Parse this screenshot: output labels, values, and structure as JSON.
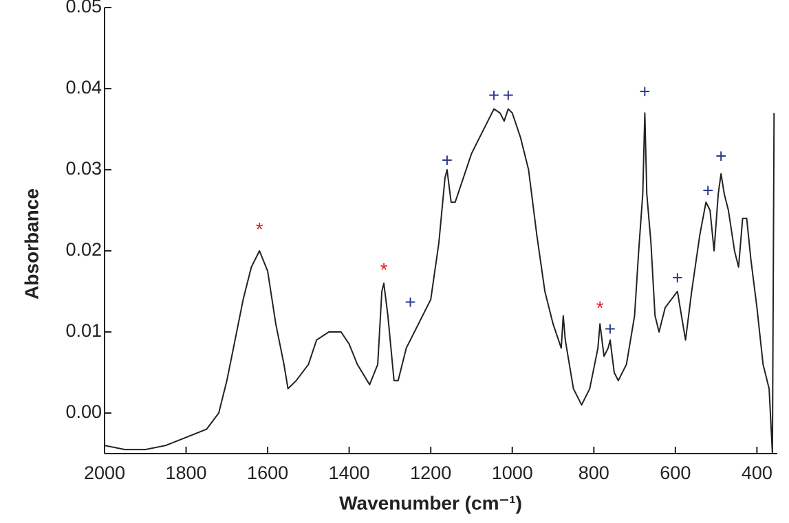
{
  "chart_data": {
    "type": "line",
    "x_label": "Wavenumber (cm⁻¹)",
    "y_label": "Absorbance",
    "xlim": [
      2000,
      350
    ],
    "ylim": [
      -0.005,
      0.05
    ],
    "xticks": [
      2000,
      1800,
      1600,
      1400,
      1200,
      1000,
      800,
      600,
      400
    ],
    "yticks": [
      {
        "value": 0,
        "label": "0.00"
      },
      0.01,
      0.02,
      0.03,
      0.04,
      0.05
    ],
    "x": [
      2000,
      1950,
      1900,
      1850,
      1800,
      1750,
      1720,
      1700,
      1680,
      1660,
      1640,
      1620,
      1600,
      1580,
      1560,
      1550,
      1530,
      1500,
      1480,
      1450,
      1420,
      1400,
      1380,
      1350,
      1330,
      1320,
      1315,
      1305,
      1290,
      1280,
      1260,
      1230,
      1200,
      1180,
      1165,
      1160,
      1150,
      1140,
      1120,
      1100,
      1080,
      1060,
      1045,
      1030,
      1020,
      1010,
      1000,
      980,
      960,
      940,
      920,
      900,
      880,
      875,
      870,
      850,
      830,
      810,
      790,
      785,
      775,
      765,
      760,
      750,
      740,
      720,
      700,
      690,
      680,
      675,
      670,
      660,
      650,
      640,
      625,
      610,
      595,
      585,
      575,
      560,
      540,
      525,
      515,
      505,
      495,
      488,
      480,
      470,
      455,
      445,
      435,
      425,
      415,
      400,
      385,
      370,
      362,
      358
    ],
    "series": [
      {
        "name": "Absorbance",
        "color": "#222222",
        "values": [
          -0.004,
          -0.0045,
          -0.0045,
          -0.004,
          -0.003,
          -0.002,
          0.0,
          0.004,
          0.009,
          0.014,
          0.018,
          0.02,
          0.0175,
          0.011,
          0.006,
          0.003,
          0.004,
          0.006,
          0.009,
          0.01,
          0.01,
          0.0085,
          0.006,
          0.0035,
          0.006,
          0.015,
          0.016,
          0.012,
          0.004,
          0.004,
          0.008,
          0.011,
          0.014,
          0.021,
          0.029,
          0.03,
          0.026,
          0.026,
          0.029,
          0.032,
          0.034,
          0.036,
          0.0375,
          0.037,
          0.036,
          0.0375,
          0.037,
          0.034,
          0.03,
          0.022,
          0.015,
          0.011,
          0.008,
          0.012,
          0.009,
          0.003,
          0.001,
          0.003,
          0.008,
          0.011,
          0.007,
          0.008,
          0.009,
          0.005,
          0.004,
          0.006,
          0.012,
          0.02,
          0.027,
          0.037,
          0.027,
          0.021,
          0.012,
          0.01,
          0.013,
          0.014,
          0.015,
          0.012,
          0.009,
          0.015,
          0.022,
          0.026,
          0.025,
          0.02,
          0.027,
          0.0295,
          0.027,
          0.025,
          0.02,
          0.018,
          0.024,
          0.024,
          0.019,
          0.013,
          0.006,
          0.003,
          -0.005,
          0.037
        ]
      }
    ],
    "annotations": [
      {
        "text": "*",
        "x": 1620,
        "y": 0.0225,
        "color": "#e0202a"
      },
      {
        "text": "*",
        "x": 1315,
        "y": 0.0175,
        "color": "#e0202a"
      },
      {
        "text": "*",
        "x": 785,
        "y": 0.0128,
        "color": "#e0202a"
      },
      {
        "text": "+",
        "x": 1250,
        "y": 0.0135,
        "color": "#2b3990"
      },
      {
        "text": "+",
        "x": 1160,
        "y": 0.031,
        "color": "#2b3990"
      },
      {
        "text": "+",
        "x": 1045,
        "y": 0.039,
        "color": "#2b3990"
      },
      {
        "text": "+",
        "x": 1010,
        "y": 0.039,
        "color": "#2b3990"
      },
      {
        "text": "+",
        "x": 760,
        "y": 0.0102,
        "color": "#2b3990"
      },
      {
        "text": "+",
        "x": 675,
        "y": 0.0395,
        "color": "#2b3990"
      },
      {
        "text": "+",
        "x": 595,
        "y": 0.0165,
        "color": "#2b3990"
      },
      {
        "text": "+",
        "x": 520,
        "y": 0.0273,
        "color": "#2b3990"
      },
      {
        "text": "+",
        "x": 488,
        "y": 0.0315,
        "color": "#2b3990"
      }
    ]
  }
}
